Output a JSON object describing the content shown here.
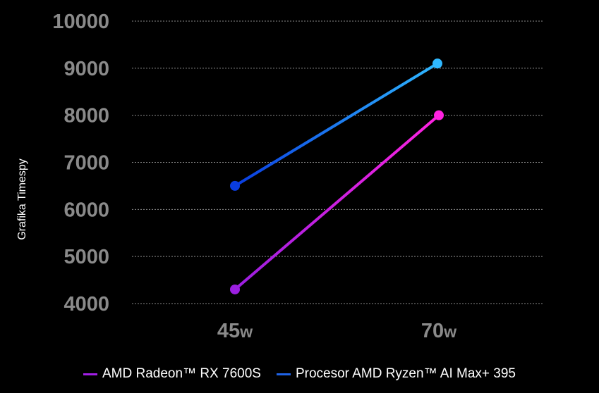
{
  "chart_data": {
    "type": "line",
    "ylabel": "Grafika Timespy",
    "xlabel": "",
    "categories": [
      {
        "value": "45",
        "unit": "w"
      },
      {
        "value": "70",
        "unit": "w"
      }
    ],
    "ylim": [
      4000,
      10000
    ],
    "yticks": [
      "10000",
      "9000",
      "8000",
      "7000",
      "6000",
      "5000",
      "4000"
    ],
    "grid": true,
    "legend_position": "bottom",
    "series": [
      {
        "name": "AMD Radeon™ RX 7600S",
        "values": [
          4300,
          8000
        ],
        "color_start": "#9b1fe0",
        "color_end": "#ff22e0"
      },
      {
        "name": "Procesor AMD Ryzen™ AI Max+ 395",
        "values": [
          6500,
          9100
        ],
        "color_start": "#0a3de0",
        "color_end": "#2fb8ff"
      }
    ],
    "tick_color": "#8a8a8a",
    "gridline_color": "#8a8a8a"
  }
}
